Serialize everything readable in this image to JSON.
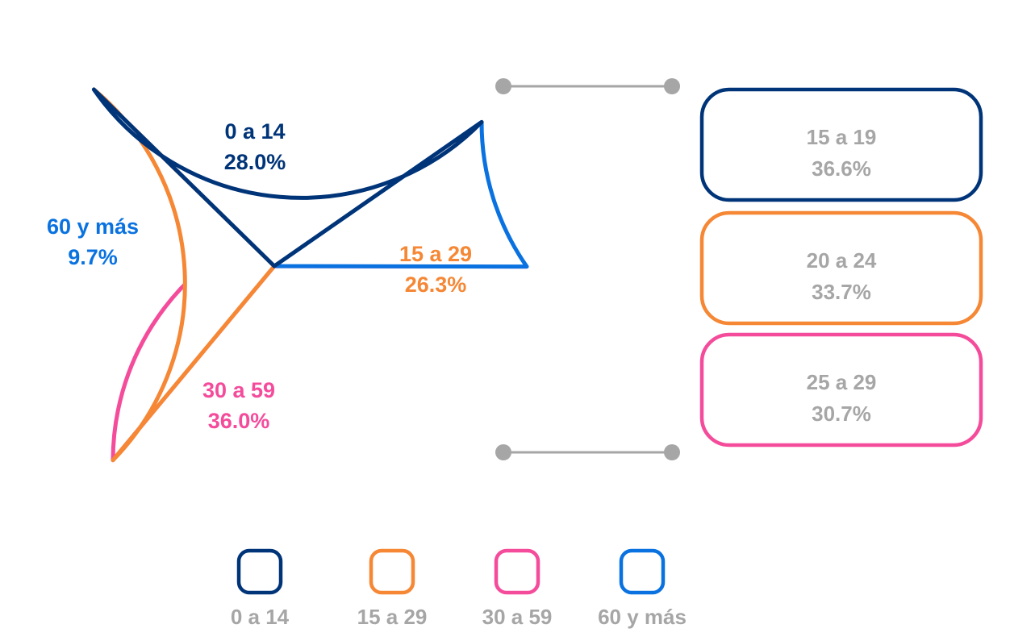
{
  "chart_data": [
    {
      "type": "pie",
      "title": "",
      "slices": [
        {
          "label": "0 a 14",
          "value": 28.0,
          "value_label": "28.0%",
          "color": "#003478"
        },
        {
          "label": "15 a 29",
          "value": 26.3,
          "value_label": "26.3%",
          "color": "#f58735"
        },
        {
          "label": "30 a 59",
          "value": 36.0,
          "value_label": "36.0%",
          "color": "#f44c9b"
        },
        {
          "label": "60 y más",
          "value": 9.7,
          "value_label": "9.7%",
          "color": "#0a72e0"
        }
      ],
      "legend": {
        "placement": "bottom",
        "items": [
          "0 a 14",
          "15 a 29",
          "30 a 59",
          "60 y más"
        ]
      }
    },
    {
      "type": "bar",
      "title": "",
      "breakdown_of": "15 a 29",
      "categories": [
        "15 a 19",
        "20 a 24",
        "25 a 29"
      ],
      "values": [
        36.6,
        33.7,
        30.7
      ],
      "value_labels": [
        "36.6%",
        "33.7%",
        "30.7%"
      ],
      "colors": [
        "#003478",
        "#f58735",
        "#f44c9b"
      ]
    }
  ]
}
